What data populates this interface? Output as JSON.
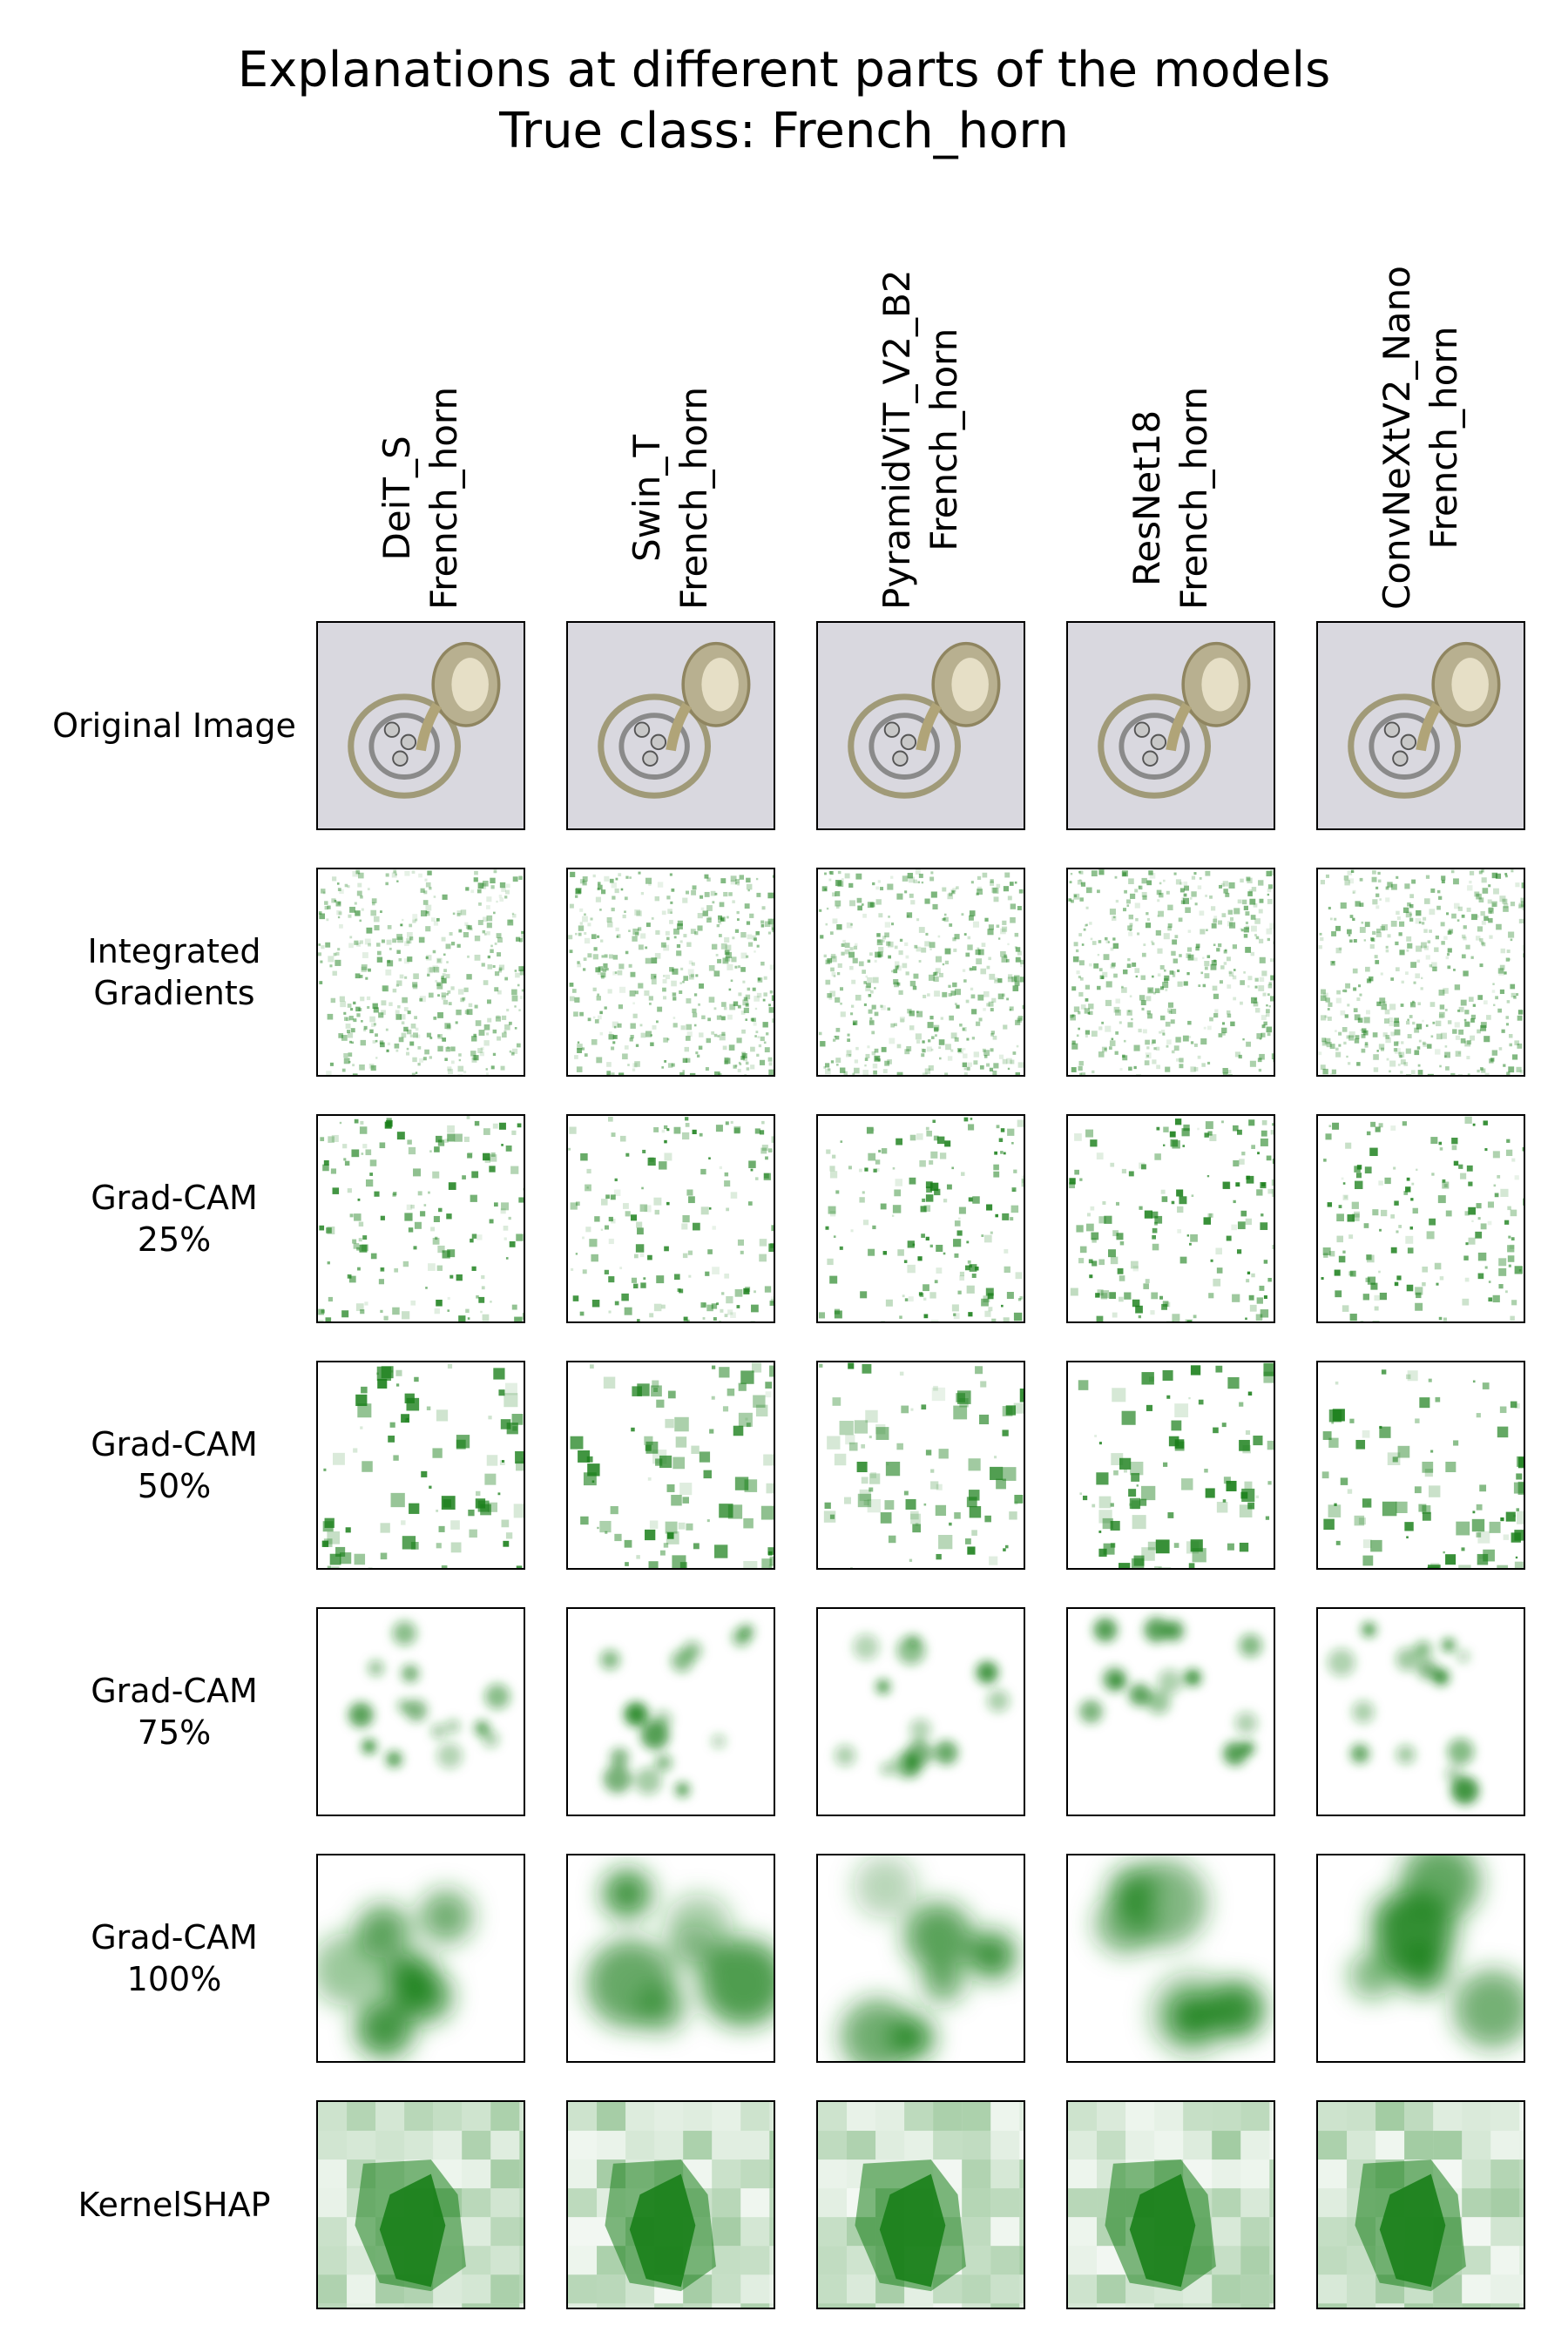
{
  "figure": {
    "title_line_1": "Explanations at different parts of the models",
    "title_line_2": "True class: French_horn"
  },
  "columns": [
    {
      "model": "DeiT_S",
      "prediction": "French_horn"
    },
    {
      "model": "Swin_T",
      "prediction": "French_horn"
    },
    {
      "model": "PyramidViT_V2_B2",
      "prediction": "French_horn"
    },
    {
      "model": "ResNet18",
      "prediction": "French_horn"
    },
    {
      "model": "ConvNeXtV2_Nano",
      "prediction": "French_horn"
    }
  ],
  "rows": [
    {
      "label_line_1": "Original Image",
      "label_line_2": ""
    },
    {
      "label_line_1": "Integrated",
      "label_line_2": "Gradients"
    },
    {
      "label_line_1": "Grad-CAM",
      "label_line_2": "25%"
    },
    {
      "label_line_1": "Grad-CAM",
      "label_line_2": "50%"
    },
    {
      "label_line_1": "Grad-CAM",
      "label_line_2": "75%"
    },
    {
      "label_line_1": "Grad-CAM",
      "label_line_2": "100%"
    },
    {
      "label_line_1": "KernelSHAP",
      "label_line_2": ""
    }
  ],
  "colors": {
    "heatmap": "#1a7f1a",
    "background_image": "#d9d8df",
    "horn": "#b8b090"
  }
}
